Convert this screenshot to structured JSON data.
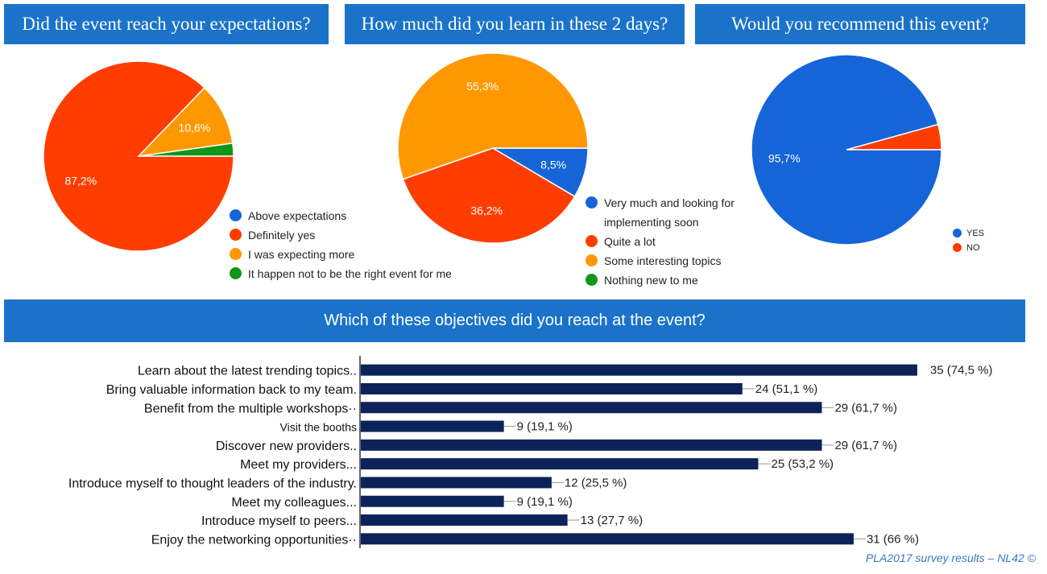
{
  "colors": {
    "header_bg": "#1a73c9",
    "blue": "#1565d8",
    "red": "#ff3d00",
    "orange": "#ff9800",
    "green": "#109618",
    "bar": "#0c2359"
  },
  "chart_data": [
    {
      "type": "pie",
      "title": "Did the event reach your expectations?",
      "slices": [
        {
          "label": "Above expectations",
          "value": 0,
          "color": "#1565d8",
          "display": ""
        },
        {
          "label": "Definitely yes",
          "value": 87.2,
          "color": "#ff3d00",
          "display": "87,2%"
        },
        {
          "label": "I was expecting more",
          "value": 10.6,
          "color": "#ff9800",
          "display": "10,6%"
        },
        {
          "label": "It happen not to be the right event for me",
          "value": 2.2,
          "color": "#109618",
          "display": ""
        }
      ],
      "legend_position": "bottom-right"
    },
    {
      "type": "pie",
      "title": "How much did you learn in these 2 days?",
      "slices": [
        {
          "label": "Very much and looking for implementing soon",
          "value": 8.5,
          "color": "#1565d8",
          "display": "8,5%"
        },
        {
          "label": "Quite a lot",
          "value": 36.2,
          "color": "#ff3d00",
          "display": "36,2%"
        },
        {
          "label": "Some interesting topics",
          "value": 55.3,
          "color": "#ff9800",
          "display": "55,3%"
        },
        {
          "label": "Nothing new to me",
          "value": 0,
          "color": "#109618",
          "display": ""
        }
      ],
      "legend_position": "bottom-right"
    },
    {
      "type": "pie",
      "title": "Would you recommend this event?",
      "slices": [
        {
          "label": "YES",
          "value": 95.7,
          "color": "#1565d8",
          "display": "95,7%"
        },
        {
          "label": "NO",
          "value": 4.3,
          "color": "#ff3d00",
          "display": ""
        }
      ],
      "legend_position": "bottom-right"
    },
    {
      "type": "bar",
      "orientation": "horizontal",
      "title": "Which of these objectives did you reach at the event?",
      "categories": [
        "Learn about the latest trending topics..",
        "Bring valuable information back to my team.",
        "Benefit from the multiple workshops··",
        "Visit the booths",
        "Discover new providers..",
        "Meet my providers...",
        "Introduce myself to thought leaders of the industry.",
        "Meet my colleagues...",
        "Introduce myself to peers...",
        "Enjoy the networking opportunities··"
      ],
      "values": [
        35,
        24,
        29,
        9,
        29,
        25,
        12,
        9,
        13,
        31
      ],
      "value_labels": [
        "35 (74,5 %)",
        "24 (51,1 %)",
        "29 (61,7 %)",
        "9 (19,1 %)",
        "29 (61,7 %)",
        "25 (53,2 %)",
        "12 (25,5 %)",
        "9 (19,1 %)",
        "13 (27,7 %)",
        "31 (66 %)"
      ],
      "xlim": [
        0,
        40
      ]
    }
  ],
  "footer": "PLA2017 survey results – NL42 ©"
}
